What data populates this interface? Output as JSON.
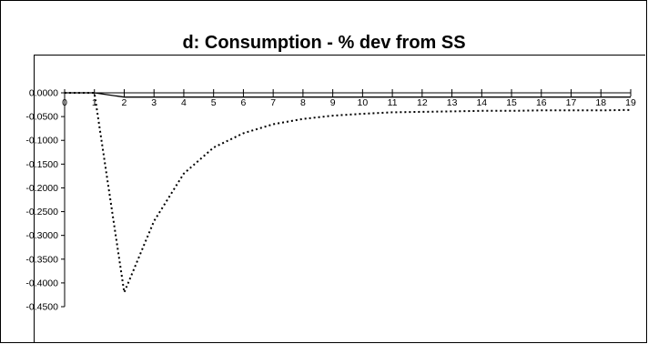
{
  "chart_data": {
    "type": "line",
    "title": "d:  Consumption - % dev from SS",
    "xlabel": "",
    "ylabel": "",
    "x": [
      0,
      1,
      2,
      3,
      4,
      5,
      6,
      7,
      8,
      9,
      10,
      11,
      12,
      13,
      14,
      15,
      16,
      17,
      18,
      19
    ],
    "ylim": [
      -0.45,
      0.0
    ],
    "yticks": [
      0.0,
      -0.05,
      -0.1,
      -0.15,
      -0.2,
      -0.25,
      -0.3,
      -0.35,
      -0.4,
      -0.45
    ],
    "ytick_labels": [
      "0.0000",
      "-0.0500",
      "-0.1000",
      "-0.1500",
      "-0.2000",
      "-0.2500",
      "-0.3000",
      "-0.3500",
      "-0.4000",
      "-0.4500"
    ],
    "xtick_labels": [
      "0",
      "1",
      "2",
      "3",
      "4",
      "5",
      "6",
      "7",
      "8",
      "9",
      "10",
      "11",
      "12",
      "13",
      "14",
      "15",
      "16",
      "17",
      "18",
      "19"
    ],
    "grid": false,
    "legend": "none",
    "series": [
      {
        "style": "solid",
        "color": "#000000",
        "values": [
          0.0,
          0.0,
          -0.009,
          -0.009,
          -0.009,
          -0.009,
          -0.009,
          -0.009,
          -0.009,
          -0.009,
          -0.009,
          -0.009,
          -0.009,
          -0.009,
          -0.009,
          -0.009,
          -0.009,
          -0.009,
          -0.009,
          -0.009
        ]
      },
      {
        "style": "dotted",
        "color": "#000000",
        "values": [
          0.0,
          0.0,
          -0.42,
          -0.27,
          -0.17,
          -0.115,
          -0.085,
          -0.066,
          -0.055,
          -0.048,
          -0.044,
          -0.041,
          -0.04,
          -0.039,
          -0.038,
          -0.038,
          -0.037,
          -0.037,
          -0.037,
          -0.036
        ]
      }
    ]
  }
}
